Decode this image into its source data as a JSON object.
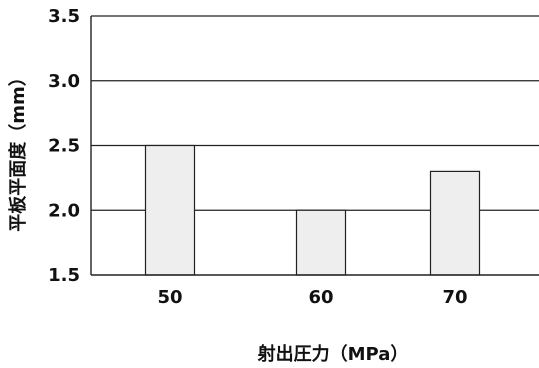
{
  "chart_data": {
    "type": "bar",
    "categories": [
      "50",
      "60",
      "70"
    ],
    "values": [
      2.5,
      2.0,
      2.3
    ],
    "title": "",
    "xlabel": "射出圧力（MPa）",
    "ylabel": "平板平面度（mm）",
    "ylim": [
      1.5,
      3.5
    ],
    "yticks": [
      "1.5",
      "2.0",
      "2.5",
      "3.0",
      "3.5"
    ],
    "grid": "horizontal",
    "legend": "none",
    "colors": {
      "bar_fill": "#eeeeee",
      "bar_stroke": "#222222",
      "grid": "#222222",
      "axis": "#222222",
      "text": "#111111"
    }
  }
}
